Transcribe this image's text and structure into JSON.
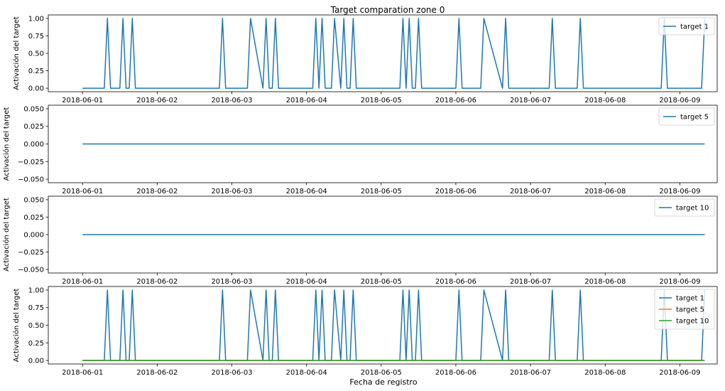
{
  "figure": {
    "title": "Target comparation zone 0",
    "xlabel": "Fecha de registro"
  },
  "chart_data": [
    {
      "type": "line",
      "ylabel": "Activación del target",
      "x_is_date": true,
      "xlim": [
        "2018-05-31T13:00",
        "2018-06-09T12:00"
      ],
      "ylim": [
        -0.05,
        1.05
      ],
      "x_ticks": [
        "2018-06-01",
        "2018-06-02",
        "2018-06-03",
        "2018-06-04",
        "2018-06-05",
        "2018-06-06",
        "2018-06-07",
        "2018-06-08",
        "2018-06-09"
      ],
      "y_ticks": [
        0.0,
        0.25,
        0.5,
        0.75,
        1.0
      ],
      "y_tick_labels": [
        "0.00",
        "0.25",
        "0.50",
        "0.75",
        "1.00"
      ],
      "grid": false,
      "legend": "top-right",
      "series": [
        {
          "name": "target 1",
          "color": "#1f77b4",
          "x": [
            "2018-06-01T00:00",
            "2018-06-01T07:00",
            "2018-06-01T08:00",
            "2018-06-01T09:00",
            "2018-06-01T12:00",
            "2018-06-01T13:00",
            "2018-06-01T14:00",
            "2018-06-01T15:00",
            "2018-06-01T16:00",
            "2018-06-01T17:00",
            "2018-06-02T20:00",
            "2018-06-02T21:00",
            "2018-06-02T22:00",
            "2018-06-03T05:00",
            "2018-06-03T06:00",
            "2018-06-03T10:00",
            "2018-06-03T11:00",
            "2018-06-03T12:00",
            "2018-06-03T13:00",
            "2018-06-03T14:00",
            "2018-06-03T15:00",
            "2018-06-03T16:00",
            "2018-06-04T02:00",
            "2018-06-04T03:00",
            "2018-06-04T04:00",
            "2018-06-04T05:00",
            "2018-06-04T06:00",
            "2018-06-04T08:00",
            "2018-06-04T09:00",
            "2018-06-04T11:00",
            "2018-06-04T12:00",
            "2018-06-04T13:00",
            "2018-06-04T14:00",
            "2018-06-04T15:00",
            "2018-06-04T16:00",
            "2018-06-05T00:00",
            "2018-06-05T06:00",
            "2018-06-05T07:00",
            "2018-06-05T08:00",
            "2018-06-05T09:00",
            "2018-06-05T10:00",
            "2018-06-05T11:00",
            "2018-06-05T12:00",
            "2018-06-05T13:00",
            "2018-06-05T14:00",
            "2018-06-06T00:00",
            "2018-06-06T01:00",
            "2018-06-06T02:00",
            "2018-06-06T08:00",
            "2018-06-06T09:00",
            "2018-06-06T15:00",
            "2018-06-06T16:00",
            "2018-06-06T17:00",
            "2018-06-07T06:00",
            "2018-06-07T07:00",
            "2018-06-07T08:00",
            "2018-06-07T15:00",
            "2018-06-07T16:00",
            "2018-06-07T17:00",
            "2018-06-08T18:00",
            "2018-06-08T19:00",
            "2018-06-08T20:00",
            "2018-06-09T07:00",
            "2018-06-09T08:00"
          ],
          "values": [
            0,
            0,
            1,
            0,
            0,
            1,
            0,
            0,
            1,
            0,
            0,
            1,
            0,
            0,
            1,
            0,
            1,
            0,
            0,
            1,
            0,
            0,
            0,
            1,
            0,
            1,
            0,
            0,
            1,
            0,
            1,
            0,
            0,
            1,
            0,
            0,
            0,
            1,
            0,
            1,
            0,
            0,
            1,
            0,
            0,
            0,
            1,
            0,
            0,
            1,
            0,
            1,
            0,
            0,
            1,
            0,
            0,
            1,
            0,
            0,
            1,
            0,
            0,
            1
          ]
        }
      ]
    },
    {
      "type": "line",
      "ylabel": "Activación del target",
      "x_is_date": true,
      "xlim": [
        "2018-05-31T13:00",
        "2018-06-09T12:00"
      ],
      "ylim": [
        -0.055,
        0.055
      ],
      "x_ticks": [
        "2018-06-01",
        "2018-06-02",
        "2018-06-03",
        "2018-06-04",
        "2018-06-05",
        "2018-06-06",
        "2018-06-07",
        "2018-06-08",
        "2018-06-09"
      ],
      "y_ticks": [
        -0.05,
        -0.025,
        0.0,
        0.025,
        0.05
      ],
      "y_tick_labels": [
        "−0.050",
        "−0.025",
        "0.000",
        "0.025",
        "0.050"
      ],
      "grid": false,
      "legend": "top-right",
      "series": [
        {
          "name": "target 5",
          "color": "#1f77b4",
          "x": [
            "2018-06-01T00:00",
            "2018-06-09T08:00"
          ],
          "values": [
            0,
            0
          ]
        }
      ]
    },
    {
      "type": "line",
      "ylabel": "Activación del target",
      "x_is_date": true,
      "xlim": [
        "2018-05-31T13:00",
        "2018-06-09T12:00"
      ],
      "ylim": [
        -0.055,
        0.055
      ],
      "x_ticks": [
        "2018-06-01",
        "2018-06-02",
        "2018-06-03",
        "2018-06-04",
        "2018-06-05",
        "2018-06-06",
        "2018-06-07",
        "2018-06-08",
        "2018-06-09"
      ],
      "y_ticks": [
        -0.05,
        -0.025,
        0.0,
        0.025,
        0.05
      ],
      "y_tick_labels": [
        "−0.050",
        "−0.025",
        "0.000",
        "0.025",
        "0.050"
      ],
      "grid": false,
      "legend": "top-right",
      "series": [
        {
          "name": "target 10",
          "color": "#1f77b4",
          "x": [
            "2018-06-01T00:00",
            "2018-06-09T08:00"
          ],
          "values": [
            0,
            0
          ]
        }
      ]
    },
    {
      "type": "line",
      "ylabel": "Activación del target",
      "x_is_date": true,
      "xlim": [
        "2018-05-31T13:00",
        "2018-06-09T12:00"
      ],
      "ylim": [
        -0.05,
        1.05
      ],
      "x_ticks": [
        "2018-06-01",
        "2018-06-02",
        "2018-06-03",
        "2018-06-04",
        "2018-06-05",
        "2018-06-06",
        "2018-06-07",
        "2018-06-08",
        "2018-06-09"
      ],
      "y_ticks": [
        0.0,
        0.25,
        0.5,
        0.75,
        1.0
      ],
      "y_tick_labels": [
        "0.00",
        "0.25",
        "0.50",
        "0.75",
        "1.00"
      ],
      "grid": false,
      "legend": "top-right",
      "series": [
        {
          "name": "target 1",
          "color": "#1f77b4",
          "x": [
            "2018-06-01T00:00",
            "2018-06-01T07:00",
            "2018-06-01T08:00",
            "2018-06-01T09:00",
            "2018-06-01T12:00",
            "2018-06-01T13:00",
            "2018-06-01T14:00",
            "2018-06-01T15:00",
            "2018-06-01T16:00",
            "2018-06-01T17:00",
            "2018-06-02T20:00",
            "2018-06-02T21:00",
            "2018-06-02T22:00",
            "2018-06-03T05:00",
            "2018-06-03T06:00",
            "2018-06-03T10:00",
            "2018-06-03T11:00",
            "2018-06-03T12:00",
            "2018-06-03T13:00",
            "2018-06-03T14:00",
            "2018-06-03T15:00",
            "2018-06-03T16:00",
            "2018-06-04T02:00",
            "2018-06-04T03:00",
            "2018-06-04T04:00",
            "2018-06-04T05:00",
            "2018-06-04T06:00",
            "2018-06-04T08:00",
            "2018-06-04T09:00",
            "2018-06-04T11:00",
            "2018-06-04T12:00",
            "2018-06-04T13:00",
            "2018-06-04T14:00",
            "2018-06-04T15:00",
            "2018-06-04T16:00",
            "2018-06-05T00:00",
            "2018-06-05T06:00",
            "2018-06-05T07:00",
            "2018-06-05T08:00",
            "2018-06-05T09:00",
            "2018-06-05T10:00",
            "2018-06-05T11:00",
            "2018-06-05T12:00",
            "2018-06-05T13:00",
            "2018-06-05T14:00",
            "2018-06-06T00:00",
            "2018-06-06T01:00",
            "2018-06-06T02:00",
            "2018-06-06T08:00",
            "2018-06-06T09:00",
            "2018-06-06T15:00",
            "2018-06-06T16:00",
            "2018-06-06T17:00",
            "2018-06-07T06:00",
            "2018-06-07T07:00",
            "2018-06-07T08:00",
            "2018-06-07T15:00",
            "2018-06-07T16:00",
            "2018-06-07T17:00",
            "2018-06-08T18:00",
            "2018-06-08T19:00",
            "2018-06-08T20:00",
            "2018-06-09T07:00",
            "2018-06-09T08:00"
          ],
          "values": [
            0,
            0,
            1,
            0,
            0,
            1,
            0,
            0,
            1,
            0,
            0,
            1,
            0,
            0,
            1,
            0,
            1,
            0,
            0,
            1,
            0,
            0,
            0,
            1,
            0,
            1,
            0,
            0,
            1,
            0,
            1,
            0,
            0,
            1,
            0,
            0,
            0,
            1,
            0,
            1,
            0,
            0,
            1,
            0,
            0,
            0,
            1,
            0,
            0,
            1,
            0,
            1,
            0,
            0,
            1,
            0,
            0,
            1,
            0,
            0,
            1,
            0,
            0,
            1
          ]
        },
        {
          "name": "target 5",
          "color": "#ff7f0e",
          "x": [
            "2018-06-01T00:00",
            "2018-06-09T08:00"
          ],
          "values": [
            0,
            0
          ]
        },
        {
          "name": "target 10",
          "color": "#2ca02c",
          "x": [
            "2018-06-01T00:00",
            "2018-06-09T08:00"
          ],
          "values": [
            0,
            0
          ]
        }
      ]
    }
  ]
}
